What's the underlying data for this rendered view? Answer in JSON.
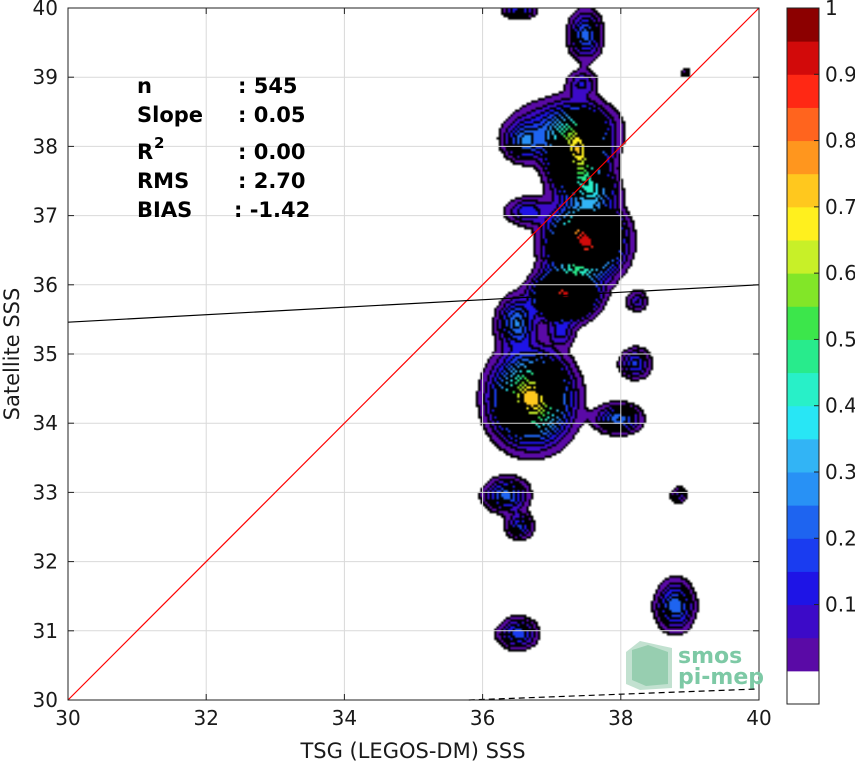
{
  "chart_data": {
    "type": "contour",
    "xlabel": "TSG (LEGOS-DM) SSS",
    "ylabel": "Satellite SSS",
    "xlim": [
      30,
      40
    ],
    "ylim": [
      30,
      40
    ],
    "xticks": [
      30,
      32,
      34,
      36,
      38,
      40
    ],
    "yticks": [
      30,
      31,
      32,
      33,
      34,
      35,
      36,
      37,
      38,
      39,
      40
    ],
    "grid": true,
    "stats": {
      "n_label": "n",
      "n_value": ": 545",
      "slope_label": "Slope",
      "slope_value": ": 0.05",
      "r2_label": "R",
      "r2_sup": "2",
      "r2_value": ": 0.00",
      "rms_label": "RMS",
      "rms_value": ": 2.70",
      "bias_label": "BIAS",
      "bias_value": ": -1.42"
    },
    "lines": [
      {
        "kind": "identity",
        "color": "#ff0000",
        "x": [
          30,
          40
        ],
        "y": [
          30,
          40
        ]
      },
      {
        "kind": "regression",
        "color": "#000000",
        "x": [
          30,
          40
        ],
        "y": [
          35.46,
          36.0
        ]
      },
      {
        "kind": "dashed",
        "color": "#000000",
        "x": [
          35.8,
          40
        ],
        "y": [
          30.0,
          30.16
        ]
      }
    ],
    "density_peaks": [
      {
        "x": 36.55,
        "y": 39.95,
        "sx": 0.15,
        "sy": 0.07,
        "a": 0.22
      },
      {
        "x": 37.5,
        "y": 39.6,
        "sx": 0.15,
        "sy": 0.22,
        "a": 0.28
      },
      {
        "x": 38.95,
        "y": 39.05,
        "sx": 0.05,
        "sy": 0.04,
        "a": 0.12
      },
      {
        "x": 37.45,
        "y": 38.9,
        "sx": 0.14,
        "sy": 0.12,
        "a": 0.15
      },
      {
        "x": 37.4,
        "y": 37.85,
        "sx": 0.25,
        "sy": 0.35,
        "a": 0.68
      },
      {
        "x": 36.6,
        "y": 38.05,
        "sx": 0.17,
        "sy": 0.17,
        "a": 0.24
      },
      {
        "x": 37.2,
        "y": 38.25,
        "sx": 0.45,
        "sy": 0.25,
        "a": 0.25
      },
      {
        "x": 37.65,
        "y": 37.35,
        "sx": 0.2,
        "sy": 0.15,
        "a": 0.25
      },
      {
        "x": 36.65,
        "y": 37.05,
        "sx": 0.2,
        "sy": 0.13,
        "a": 0.18
      },
      {
        "x": 37.5,
        "y": 36.62,
        "sx": 0.3,
        "sy": 0.3,
        "a": 1.0
      },
      {
        "x": 37.2,
        "y": 35.85,
        "sx": 0.25,
        "sy": 0.2,
        "a": 0.95
      },
      {
        "x": 37.15,
        "y": 35.3,
        "sx": 0.12,
        "sy": 0.12,
        "a": 0.15
      },
      {
        "x": 36.5,
        "y": 35.45,
        "sx": 0.17,
        "sy": 0.22,
        "a": 0.3
      },
      {
        "x": 36.72,
        "y": 34.35,
        "sx": 0.33,
        "sy": 0.38,
        "a": 0.8
      },
      {
        "x": 38.25,
        "y": 35.75,
        "sx": 0.1,
        "sy": 0.1,
        "a": 0.15
      },
      {
        "x": 38.22,
        "y": 34.85,
        "sx": 0.14,
        "sy": 0.14,
        "a": 0.22
      },
      {
        "x": 37.98,
        "y": 34.05,
        "sx": 0.2,
        "sy": 0.13,
        "a": 0.3
      },
      {
        "x": 36.35,
        "y": 32.95,
        "sx": 0.2,
        "sy": 0.15,
        "a": 0.28
      },
      {
        "x": 36.55,
        "y": 32.5,
        "sx": 0.12,
        "sy": 0.12,
        "a": 0.22
      },
      {
        "x": 38.85,
        "y": 32.95,
        "sx": 0.07,
        "sy": 0.07,
        "a": 0.16
      },
      {
        "x": 36.52,
        "y": 30.95,
        "sx": 0.18,
        "sy": 0.14,
        "a": 0.24
      },
      {
        "x": 38.8,
        "y": 31.35,
        "sx": 0.17,
        "sy": 0.22,
        "a": 0.3
      }
    ],
    "colorbar": {
      "ticks": [
        0.1,
        0.2,
        0.3,
        0.4,
        0.5,
        0.6,
        0.7,
        0.8,
        0.9,
        1
      ],
      "tick_labels": [
        "0.1",
        "0.2",
        "0.3",
        "0.4",
        "0.5",
        "0.6",
        "0.7",
        "0.8",
        "0.9",
        "1"
      ],
      "levels": [
        0,
        0.05,
        0.1,
        0.15,
        0.2,
        0.25,
        0.3,
        0.35,
        0.4,
        0.45,
        0.5,
        0.55,
        0.6,
        0.65,
        0.7,
        0.75,
        0.8,
        0.85,
        0.9,
        0.95,
        1.0
      ],
      "colors": [
        "#ffffff",
        "#5a0aa6",
        "#3c0ac8",
        "#1e14e6",
        "#1a3cf0",
        "#1e64f0",
        "#2891f5",
        "#32b4f5",
        "#28e6f5",
        "#28f0c8",
        "#28eb8c",
        "#3ce64b",
        "#82e628",
        "#c8f028",
        "#fff01e",
        "#ffc81e",
        "#ff961e",
        "#ff641e",
        "#ff2814",
        "#d20a0a",
        "#8c0000"
      ]
    }
  },
  "logo": {
    "line1": "smos",
    "line2": "pi-mep"
  }
}
